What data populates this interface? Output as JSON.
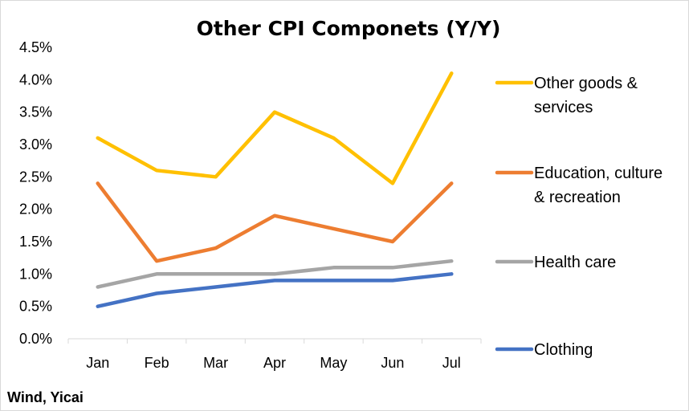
{
  "chart_data": {
    "type": "line",
    "title": "Other CPI Componets (Y/Y)",
    "source": "Wind, Yicai",
    "categories": [
      "Jan",
      "Feb",
      "Mar",
      "Apr",
      "May",
      "Jun",
      "Jul"
    ],
    "y_ticks": [
      "0.0%",
      "0.5%",
      "1.0%",
      "1.5%",
      "2.0%",
      "2.5%",
      "3.0%",
      "3.5%",
      "4.0%",
      "4.5%"
    ],
    "ylim": [
      0,
      4.5
    ],
    "grid": false,
    "legend_position": "right",
    "series": [
      {
        "name": "Other goods & services",
        "name_lines": [
          "Other goods &",
          "services"
        ],
        "color": "#FFC000",
        "values": [
          3.1,
          2.6,
          2.5,
          3.5,
          3.1,
          2.4,
          4.1
        ]
      },
      {
        "name": "Education, culture & recreation",
        "name_lines": [
          "Education, culture",
          "& recreation"
        ],
        "color": "#ED7D31",
        "values": [
          2.4,
          1.2,
          1.4,
          1.9,
          1.7,
          1.5,
          2.4
        ]
      },
      {
        "name": "Health care",
        "name_lines": [
          "Health care"
        ],
        "color": "#A5A5A5",
        "values": [
          0.8,
          1.0,
          1.0,
          1.0,
          1.1,
          1.1,
          1.2
        ]
      },
      {
        "name": "Clothing",
        "name_lines": [
          "Clothing"
        ],
        "color": "#4472C4",
        "values": [
          0.5,
          0.7,
          0.8,
          0.9,
          0.9,
          0.9,
          1.0
        ]
      }
    ]
  }
}
